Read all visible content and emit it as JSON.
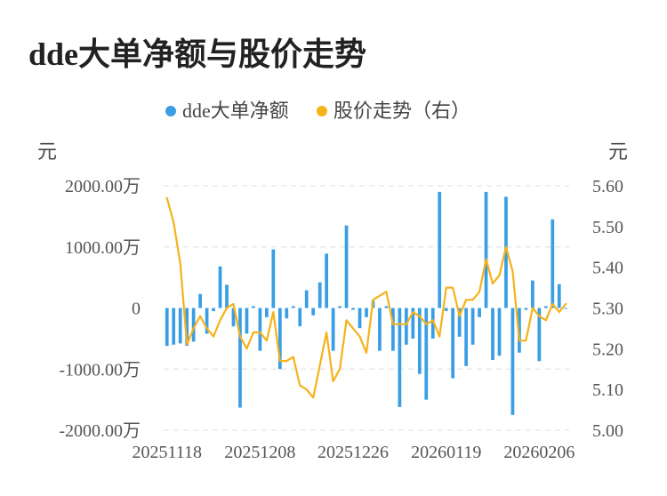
{
  "title": "dde大单净额与股价走势",
  "chart_data": {
    "type": "bar+line",
    "legend": {
      "placement": "top-center",
      "items": [
        {
          "label": "dde大单净额",
          "color": "#3a9ee4"
        },
        {
          "label": "股价走势（右）",
          "color": "#f5b21a"
        }
      ]
    },
    "left_axis": {
      "unit": "元",
      "ylim": [
        -2000,
        2000
      ],
      "ticks": [
        2000,
        1000,
        0,
        -1000,
        -2000
      ],
      "tick_labels": [
        "2000.00万",
        "1000.00万",
        "0",
        "-1000.00万",
        "-2000.00万"
      ]
    },
    "right_axis": {
      "unit": "元",
      "ylim": [
        5.0,
        5.6
      ],
      "ticks": [
        5.6,
        5.5,
        5.4,
        5.3,
        5.2,
        5.1,
        5.0
      ],
      "tick_labels": [
        "5.60",
        "5.50",
        "5.40",
        "5.30",
        "5.20",
        "5.10",
        "5.00"
      ]
    },
    "x_tick_labels": [
      "20251118",
      "20251208",
      "20251226",
      "20260119",
      "20260206"
    ],
    "x_tick_index": [
      0,
      14,
      28,
      42,
      56
    ],
    "grid": true,
    "series": [
      {
        "name": "dde大单净额",
        "type": "bar",
        "color": "#3a9ee4",
        "values": [
          -620,
          -600,
          -580,
          -620,
          -550,
          230,
          -420,
          -50,
          680,
          380,
          -300,
          -1630,
          -420,
          30,
          -700,
          -150,
          960,
          -1000,
          -170,
          30,
          -300,
          290,
          -120,
          420,
          890,
          -700,
          30,
          1350,
          -30,
          -330,
          -150,
          120,
          -700,
          30,
          -700,
          -1620,
          -600,
          -500,
          -1080,
          -1500,
          -500,
          1900,
          -50,
          -1150,
          -470,
          -950,
          -600,
          -150,
          1900,
          -850,
          -780,
          1820,
          -1750,
          -730,
          -30,
          450,
          -870,
          30,
          1450,
          390,
          0
        ],
        "value_unit": "万"
      },
      {
        "name": "股价走势（右）",
        "type": "line",
        "color": "#f5b21a",
        "values": [
          5.57,
          5.51,
          5.41,
          5.21,
          5.25,
          5.28,
          5.25,
          5.23,
          5.27,
          5.3,
          5.31,
          5.23,
          5.2,
          5.24,
          5.24,
          5.22,
          5.29,
          5.17,
          5.17,
          5.18,
          5.11,
          5.1,
          5.08,
          5.16,
          5.24,
          5.12,
          5.15,
          5.27,
          5.25,
          5.23,
          5.19,
          5.32,
          5.33,
          5.34,
          5.26,
          5.26,
          5.26,
          5.29,
          5.28,
          5.26,
          5.27,
          5.23,
          5.35,
          5.35,
          5.28,
          5.32,
          5.32,
          5.34,
          5.42,
          5.36,
          5.38,
          5.45,
          5.39,
          5.22,
          5.22,
          5.3,
          5.28,
          5.27,
          5.31,
          5.29,
          5.31
        ],
        "value_unit": "元"
      }
    ]
  }
}
